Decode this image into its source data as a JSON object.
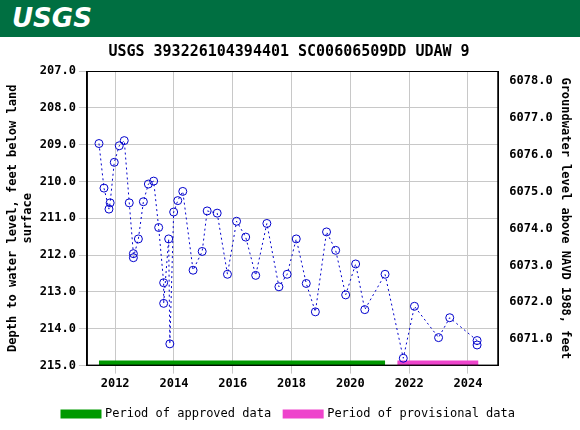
{
  "header": "USGS",
  "chart_data": {
    "type": "line",
    "title": "USGS 393226104394401 SC00606509DD UDAW 9",
    "ylabel": [
      "Depth to water level, feet below land",
      "surface"
    ],
    "y2label": "Groundwater level above NAVD 1988, feet",
    "xlim": [
      2011.04,
      2025.03
    ],
    "xticks": [
      2012,
      2014,
      2016,
      2018,
      2020,
      2022,
      2024
    ],
    "ylim": [
      215,
      207
    ],
    "yticks": [
      {
        "value": 207,
        "label": "207.0"
      },
      {
        "value": 208,
        "label": "208.0"
      },
      {
        "value": 209,
        "label": "209.0"
      },
      {
        "value": 210,
        "label": "210.0"
      },
      {
        "value": 211,
        "label": "211.0"
      },
      {
        "value": 212,
        "label": "212.0"
      },
      {
        "value": 213,
        "label": "213.0"
      },
      {
        "value": 214,
        "label": "214.0"
      },
      {
        "value": 215,
        "label": "215.0"
      }
    ],
    "y2lim": [
      6070.28,
      6078.28
    ],
    "y2ticks": [
      {
        "value": 6071,
        "label": "6071.0"
      },
      {
        "value": 6072,
        "label": "6072.0"
      },
      {
        "value": 6073,
        "label": "6073.0"
      },
      {
        "value": 6074,
        "label": "6074.0"
      },
      {
        "value": 6075,
        "label": "6075.0"
      },
      {
        "value": 6076,
        "label": "6076.0"
      },
      {
        "value": 6077,
        "label": "6077.0"
      },
      {
        "value": 6078,
        "label": "6078.0"
      }
    ],
    "grid": true,
    "legend": "bottom",
    "series": [
      {
        "color": "#0000cc",
        "marker": "circle",
        "line_style": "dotted",
        "x": [
          2011.45,
          2011.62,
          2011.79,
          2011.83,
          2011.97,
          2012.14,
          2012.31,
          2012.48,
          2012.62,
          2012.62,
          2012.79,
          2012.96,
          2013.13,
          2013.31,
          2013.48,
          2013.65,
          2013.65,
          2013.82,
          2013.86,
          2013.99,
          2014.13,
          2014.3,
          2014.65,
          2014.96,
          2015.13,
          2015.47,
          2015.82,
          2016.13,
          2016.44,
          2016.78,
          2017.16,
          2017.57,
          2017.85,
          2018.16,
          2018.5,
          2018.81,
          2019.19,
          2019.5,
          2019.84,
          2020.18,
          2020.49,
          2021.18,
          2021.8,
          2022.18,
          2023.0,
          2023.38,
          2024.31,
          2024.31
        ],
        "values": [
          208.97,
          210.18,
          210.75,
          210.58,
          209.48,
          209.03,
          208.89,
          210.58,
          211.96,
          212.07,
          211.56,
          210.55,
          210.07,
          209.99,
          211.25,
          212.75,
          213.31,
          211.56,
          214.41,
          210.83,
          210.52,
          210.27,
          212.41,
          211.9,
          210.8,
          210.86,
          212.52,
          211.08,
          211.51,
          212.55,
          211.14,
          212.86,
          212.52,
          211.56,
          212.77,
          213.54,
          211.37,
          211.87,
          213.08,
          212.24,
          213.48,
          212.52,
          214.8,
          213.39,
          214.24,
          213.7,
          214.32,
          214.44
        ]
      },
      {
        "name": "Period of approved data",
        "color": "#009900",
        "marker": "none",
        "line_style": "solid",
        "x": [
          2011.45,
          2021.18
        ],
        "values": [
          214.93,
          214.93
        ]
      },
      {
        "name": "Period of provisional data",
        "color": "#ee44cc",
        "marker": "none",
        "line_style": "solid",
        "x": [
          2021.6,
          2024.35
        ],
        "values": [
          214.93,
          214.93
        ]
      }
    ]
  }
}
